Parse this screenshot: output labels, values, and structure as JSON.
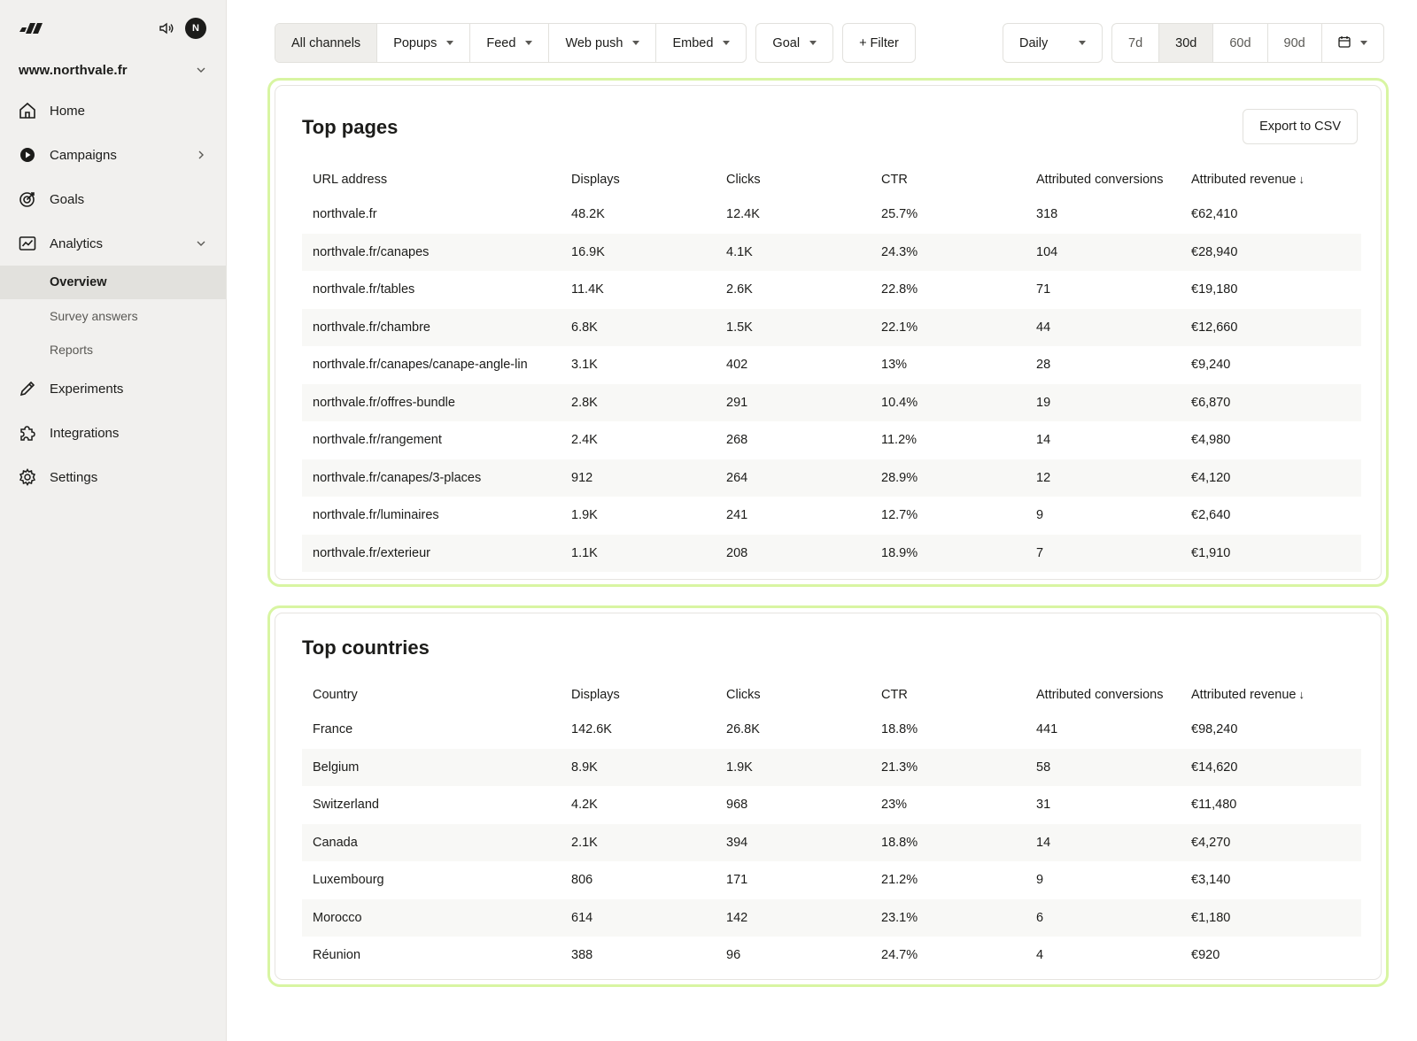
{
  "sidebar": {
    "avatar_initial": "N",
    "site": "www.northvale.fr",
    "nav": {
      "home": "Home",
      "campaigns": "Campaigns",
      "goals": "Goals",
      "analytics": "Analytics",
      "overview": "Overview",
      "survey_answers": "Survey answers",
      "reports": "Reports",
      "experiments": "Experiments",
      "integrations": "Integrations",
      "settings": "Settings"
    }
  },
  "toolbar": {
    "channels": [
      "All channels",
      "Popups",
      "Feed",
      "Web push",
      "Embed"
    ],
    "goal": "Goal",
    "filter": "+ Filter",
    "granularity": "Daily",
    "ranges": [
      "7d",
      "30d",
      "60d",
      "90d"
    ],
    "active_range": "30d"
  },
  "top_pages": {
    "title": "Top pages",
    "export_label": "Export to CSV",
    "headers": [
      "URL address",
      "Displays",
      "Clicks",
      "CTR",
      "Attributed conversions",
      "Attributed revenue"
    ],
    "sort_arrow": "↓",
    "rows": [
      [
        "northvale.fr",
        "48.2K",
        "12.4K",
        "25.7%",
        "318",
        "€62,410"
      ],
      [
        "northvale.fr/canapes",
        "16.9K",
        "4.1K",
        "24.3%",
        "104",
        "€28,940"
      ],
      [
        "northvale.fr/tables",
        "11.4K",
        "2.6K",
        "22.8%",
        "71",
        "€19,180"
      ],
      [
        "northvale.fr/chambre",
        "6.8K",
        "1.5K",
        "22.1%",
        "44",
        "€12,660"
      ],
      [
        "northvale.fr/canapes/canape-angle-lin",
        "3.1K",
        "402",
        "13%",
        "28",
        "€9,240"
      ],
      [
        "northvale.fr/offres-bundle",
        "2.8K",
        "291",
        "10.4%",
        "19",
        "€6,870"
      ],
      [
        "northvale.fr/rangement",
        "2.4K",
        "268",
        "11.2%",
        "14",
        "€4,980"
      ],
      [
        "northvale.fr/canapes/3-places",
        "912",
        "264",
        "28.9%",
        "12",
        "€4,120"
      ],
      [
        "northvale.fr/luminaires",
        "1.9K",
        "241",
        "12.7%",
        "9",
        "€2,640"
      ],
      [
        "northvale.fr/exterieur",
        "1.1K",
        "208",
        "18.9%",
        "7",
        "€1,910"
      ]
    ]
  },
  "top_countries": {
    "title": "Top countries",
    "headers": [
      "Country",
      "Displays",
      "Clicks",
      "CTR",
      "Attributed conversions",
      "Attributed revenue"
    ],
    "sort_arrow": "↓",
    "rows": [
      [
        "France",
        "142.6K",
        "26.8K",
        "18.8%",
        "441",
        "€98,240"
      ],
      [
        "Belgium",
        "8.9K",
        "1.9K",
        "21.3%",
        "58",
        "€14,620"
      ],
      [
        "Switzerland",
        "4.2K",
        "968",
        "23%",
        "31",
        "€11,480"
      ],
      [
        "Canada",
        "2.1K",
        "394",
        "18.8%",
        "14",
        "€4,270"
      ],
      [
        "Luxembourg",
        "806",
        "171",
        "21.2%",
        "9",
        "€3,140"
      ],
      [
        "Morocco",
        "614",
        "142",
        "23.1%",
        "6",
        "€1,180"
      ],
      [
        "Réunion",
        "388",
        "96",
        "24.7%",
        "4",
        "€920"
      ]
    ]
  },
  "colors": {
    "accent_outline": "#d8f5a2",
    "sidebar_bg": "#f1f0ee",
    "active_item_bg": "#e2e1dd"
  }
}
